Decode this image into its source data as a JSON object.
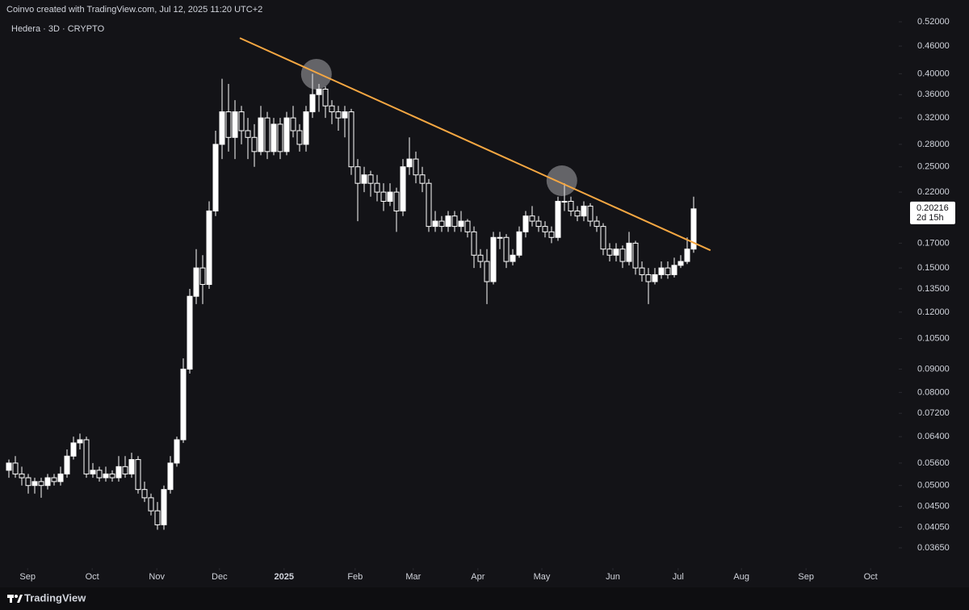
{
  "header": {
    "attribution": "Coinvo created with TradingView.com, Jul 12, 2025 11:20 UTC+2",
    "symbol": "Hedera · 3D · CRYPTO",
    "brand": "TradingView"
  },
  "chart_data": {
    "type": "candlestick",
    "log_scale": true,
    "up_color": "#ffffff",
    "down_color": "#131317",
    "wick_color": "#ffffff",
    "ohlc": [
      [
        0.054,
        0.057,
        0.052,
        0.056
      ],
      [
        0.056,
        0.058,
        0.052,
        0.053
      ],
      [
        0.053,
        0.055,
        0.05,
        0.052
      ],
      [
        0.052,
        0.053,
        0.048,
        0.05
      ],
      [
        0.05,
        0.052,
        0.048,
        0.051
      ],
      [
        0.051,
        0.052,
        0.047,
        0.05
      ],
      [
        0.05,
        0.053,
        0.049,
        0.052
      ],
      [
        0.052,
        0.053,
        0.05,
        0.051
      ],
      [
        0.051,
        0.055,
        0.05,
        0.053
      ],
      [
        0.053,
        0.06,
        0.052,
        0.058
      ],
      [
        0.058,
        0.064,
        0.057,
        0.062
      ],
      [
        0.062,
        0.065,
        0.06,
        0.063
      ],
      [
        0.063,
        0.064,
        0.052,
        0.053
      ],
      [
        0.053,
        0.056,
        0.052,
        0.054
      ],
      [
        0.054,
        0.055,
        0.051,
        0.052
      ],
      [
        0.052,
        0.055,
        0.051,
        0.053
      ],
      [
        0.053,
        0.054,
        0.051,
        0.052
      ],
      [
        0.052,
        0.058,
        0.051,
        0.055
      ],
      [
        0.055,
        0.058,
        0.052,
        0.053
      ],
      [
        0.053,
        0.059,
        0.052,
        0.057
      ],
      [
        0.057,
        0.058,
        0.048,
        0.049
      ],
      [
        0.049,
        0.051,
        0.046,
        0.047
      ],
      [
        0.047,
        0.048,
        0.043,
        0.044
      ],
      [
        0.044,
        0.046,
        0.04,
        0.041
      ],
      [
        0.041,
        0.05,
        0.04,
        0.049
      ],
      [
        0.049,
        0.058,
        0.048,
        0.056
      ],
      [
        0.056,
        0.064,
        0.055,
        0.063
      ],
      [
        0.063,
        0.095,
        0.062,
        0.09
      ],
      [
        0.09,
        0.135,
        0.088,
        0.13
      ],
      [
        0.13,
        0.165,
        0.125,
        0.15
      ],
      [
        0.15,
        0.16,
        0.125,
        0.138
      ],
      [
        0.138,
        0.21,
        0.135,
        0.2
      ],
      [
        0.2,
        0.3,
        0.195,
        0.28
      ],
      [
        0.28,
        0.39,
        0.26,
        0.33
      ],
      [
        0.33,
        0.38,
        0.27,
        0.29
      ],
      [
        0.29,
        0.35,
        0.26,
        0.33
      ],
      [
        0.33,
        0.34,
        0.28,
        0.3
      ],
      [
        0.3,
        0.32,
        0.26,
        0.29
      ],
      [
        0.29,
        0.31,
        0.25,
        0.27
      ],
      [
        0.27,
        0.34,
        0.265,
        0.32
      ],
      [
        0.32,
        0.33,
        0.26,
        0.27
      ],
      [
        0.27,
        0.32,
        0.265,
        0.31
      ],
      [
        0.31,
        0.32,
        0.26,
        0.27
      ],
      [
        0.27,
        0.33,
        0.265,
        0.32
      ],
      [
        0.32,
        0.34,
        0.29,
        0.3
      ],
      [
        0.3,
        0.31,
        0.27,
        0.28
      ],
      [
        0.28,
        0.34,
        0.27,
        0.33
      ],
      [
        0.33,
        0.4,
        0.32,
        0.36
      ],
      [
        0.36,
        0.38,
        0.33,
        0.37
      ],
      [
        0.37,
        0.375,
        0.32,
        0.34
      ],
      [
        0.34,
        0.35,
        0.31,
        0.33
      ],
      [
        0.33,
        0.34,
        0.3,
        0.32
      ],
      [
        0.32,
        0.34,
        0.29,
        0.33
      ],
      [
        0.33,
        0.335,
        0.24,
        0.25
      ],
      [
        0.25,
        0.26,
        0.19,
        0.23
      ],
      [
        0.23,
        0.25,
        0.22,
        0.24
      ],
      [
        0.24,
        0.245,
        0.215,
        0.23
      ],
      [
        0.23,
        0.24,
        0.21,
        0.22
      ],
      [
        0.22,
        0.23,
        0.2,
        0.21
      ],
      [
        0.21,
        0.23,
        0.205,
        0.22
      ],
      [
        0.22,
        0.225,
        0.18,
        0.2
      ],
      [
        0.2,
        0.26,
        0.195,
        0.25
      ],
      [
        0.25,
        0.29,
        0.24,
        0.26
      ],
      [
        0.26,
        0.27,
        0.23,
        0.24
      ],
      [
        0.24,
        0.25,
        0.22,
        0.23
      ],
      [
        0.23,
        0.235,
        0.18,
        0.185
      ],
      [
        0.185,
        0.2,
        0.18,
        0.19
      ],
      [
        0.19,
        0.195,
        0.18,
        0.185
      ],
      [
        0.185,
        0.2,
        0.18,
        0.195
      ],
      [
        0.195,
        0.2,
        0.18,
        0.185
      ],
      [
        0.185,
        0.2,
        0.18,
        0.19
      ],
      [
        0.19,
        0.192,
        0.175,
        0.18
      ],
      [
        0.18,
        0.185,
        0.15,
        0.16
      ],
      [
        0.16,
        0.165,
        0.15,
        0.155
      ],
      [
        0.155,
        0.165,
        0.125,
        0.14
      ],
      [
        0.14,
        0.18,
        0.138,
        0.175
      ],
      [
        0.175,
        0.18,
        0.165,
        0.175
      ],
      [
        0.175,
        0.178,
        0.15,
        0.155
      ],
      [
        0.155,
        0.165,
        0.152,
        0.16
      ],
      [
        0.16,
        0.185,
        0.158,
        0.18
      ],
      [
        0.18,
        0.2,
        0.175,
        0.195
      ],
      [
        0.195,
        0.205,
        0.185,
        0.19
      ],
      [
        0.19,
        0.195,
        0.18,
        0.185
      ],
      [
        0.185,
        0.19,
        0.175,
        0.18
      ],
      [
        0.18,
        0.185,
        0.17,
        0.175
      ],
      [
        0.175,
        0.215,
        0.172,
        0.21
      ],
      [
        0.21,
        0.23,
        0.2,
        0.21
      ],
      [
        0.21,
        0.215,
        0.195,
        0.2
      ],
      [
        0.2,
        0.205,
        0.19,
        0.195
      ],
      [
        0.195,
        0.21,
        0.19,
        0.205
      ],
      [
        0.205,
        0.208,
        0.185,
        0.19
      ],
      [
        0.19,
        0.195,
        0.18,
        0.185
      ],
      [
        0.185,
        0.188,
        0.16,
        0.165
      ],
      [
        0.165,
        0.17,
        0.155,
        0.16
      ],
      [
        0.16,
        0.17,
        0.155,
        0.165
      ],
      [
        0.165,
        0.168,
        0.15,
        0.155
      ],
      [
        0.155,
        0.18,
        0.152,
        0.17
      ],
      [
        0.17,
        0.172,
        0.145,
        0.15
      ],
      [
        0.15,
        0.155,
        0.14,
        0.145
      ],
      [
        0.145,
        0.15,
        0.125,
        0.14
      ],
      [
        0.14,
        0.15,
        0.138,
        0.145
      ],
      [
        0.145,
        0.155,
        0.142,
        0.15
      ],
      [
        0.15,
        0.155,
        0.142,
        0.145
      ],
      [
        0.145,
        0.158,
        0.143,
        0.152
      ],
      [
        0.152,
        0.16,
        0.15,
        0.155
      ],
      [
        0.155,
        0.175,
        0.153,
        0.165
      ],
      [
        0.165,
        0.215,
        0.162,
        0.20216
      ]
    ],
    "xlim": [
      -1.375,
      137.75
    ],
    "xticks": [
      {
        "value": 2.9,
        "label": "Sep"
      },
      {
        "value": 12.9,
        "label": "Oct"
      },
      {
        "value": 22.9,
        "label": "Nov"
      },
      {
        "value": 32.6,
        "label": "Dec"
      },
      {
        "value": 42.6,
        "label": "2025"
      },
      {
        "value": 53.6,
        "label": "Feb"
      },
      {
        "value": 62.6,
        "label": "Mar"
      },
      {
        "value": 72.6,
        "label": "Apr"
      },
      {
        "value": 82.5,
        "label": "May"
      },
      {
        "value": 93.5,
        "label": "Jun"
      },
      {
        "value": 103.6,
        "label": "Jul"
      },
      {
        "value": 113.4,
        "label": "Aug"
      },
      {
        "value": 123.4,
        "label": "Sep"
      },
      {
        "value": 133.4,
        "label": "Oct"
      }
    ],
    "ylim": [
      0.0335,
      0.535
    ],
    "yticks": [
      {
        "value": 0.52,
        "label": "0.52000"
      },
      {
        "value": 0.46,
        "label": "0.46000"
      },
      {
        "value": 0.4,
        "label": "0.40000"
      },
      {
        "value": 0.36,
        "label": "0.36000"
      },
      {
        "value": 0.32,
        "label": "0.32000"
      },
      {
        "value": 0.28,
        "label": "0.28000"
      },
      {
        "value": 0.25,
        "label": "0.25000"
      },
      {
        "value": 0.22,
        "label": "0.22000"
      },
      {
        "value": 0.17,
        "label": "0.17000"
      },
      {
        "value": 0.15,
        "label": "0.15000"
      },
      {
        "value": 0.135,
        "label": "0.13500"
      },
      {
        "value": 0.12,
        "label": "0.12000"
      },
      {
        "value": 0.105,
        "label": "0.10500"
      },
      {
        "value": 0.09,
        "label": "0.09000"
      },
      {
        "value": 0.08,
        "label": "0.08000"
      },
      {
        "value": 0.072,
        "label": "0.07200"
      },
      {
        "value": 0.064,
        "label": "0.06400"
      },
      {
        "value": 0.056,
        "label": "0.05600"
      },
      {
        "value": 0.05,
        "label": "0.05000"
      },
      {
        "value": 0.045,
        "label": "0.04500"
      },
      {
        "value": 0.0405,
        "label": "0.04050"
      },
      {
        "value": 0.0365,
        "label": "0.03650"
      }
    ],
    "price_tag": {
      "value": 0.20216,
      "label": "0.20216",
      "countdown": "2d 15h"
    },
    "trendline": {
      "color": "#f5a742",
      "points": [
        [
          35.75,
          0.479
        ],
        [
          108.6,
          0.164
        ]
      ]
    },
    "highlights": [
      [
        47.6,
        0.399
      ],
      [
        85.6,
        0.233
      ]
    ]
  }
}
